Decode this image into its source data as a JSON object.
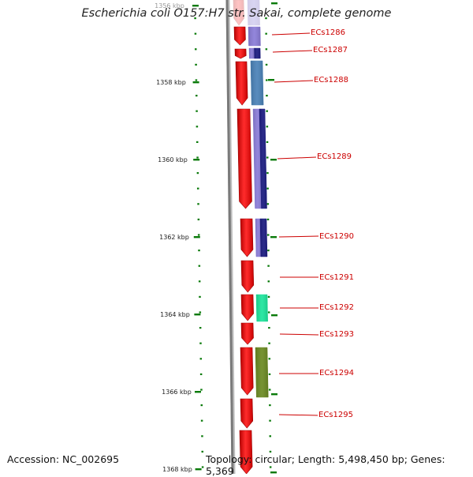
{
  "title": "Escherichia coli O157:H7 str. Sakai, complete genome",
  "footer": {
    "accession": "Accession: NC_002695",
    "summary": "Topology: circular; Length: 5,498,450 bp; Genes: 5,369"
  },
  "scale": {
    "unit": "kbp",
    "labels": [
      "1356 kbp",
      "1358 kbp",
      "1360 kbp",
      "1362 kbp",
      "1364 kbp",
      "1366 kbp",
      "1368 kbp"
    ]
  },
  "genes": [
    {
      "label": "ECs1286",
      "color": "#8a7cd8"
    },
    {
      "label": "ECs1287",
      "color": "#1a1a80"
    },
    {
      "label": "ECs1288",
      "color": "#4a82b8"
    },
    {
      "label": "ECs1289",
      "color": "#1a1a80"
    },
    {
      "label": "ECs1290",
      "color": "#1a1a80"
    },
    {
      "label": "ECs1291",
      "color": ""
    },
    {
      "label": "ECs1292",
      "color": "#1de59c"
    },
    {
      "label": "ECs1293",
      "color": ""
    },
    {
      "label": "ECs1294",
      "color": "#6b8a22"
    },
    {
      "label": "ECs1295",
      "color": ""
    }
  ],
  "colors": {
    "forward_strand": "#ff0000",
    "backbone": "#808080",
    "tick": "#0a7a0a",
    "label": "#cc0000"
  }
}
